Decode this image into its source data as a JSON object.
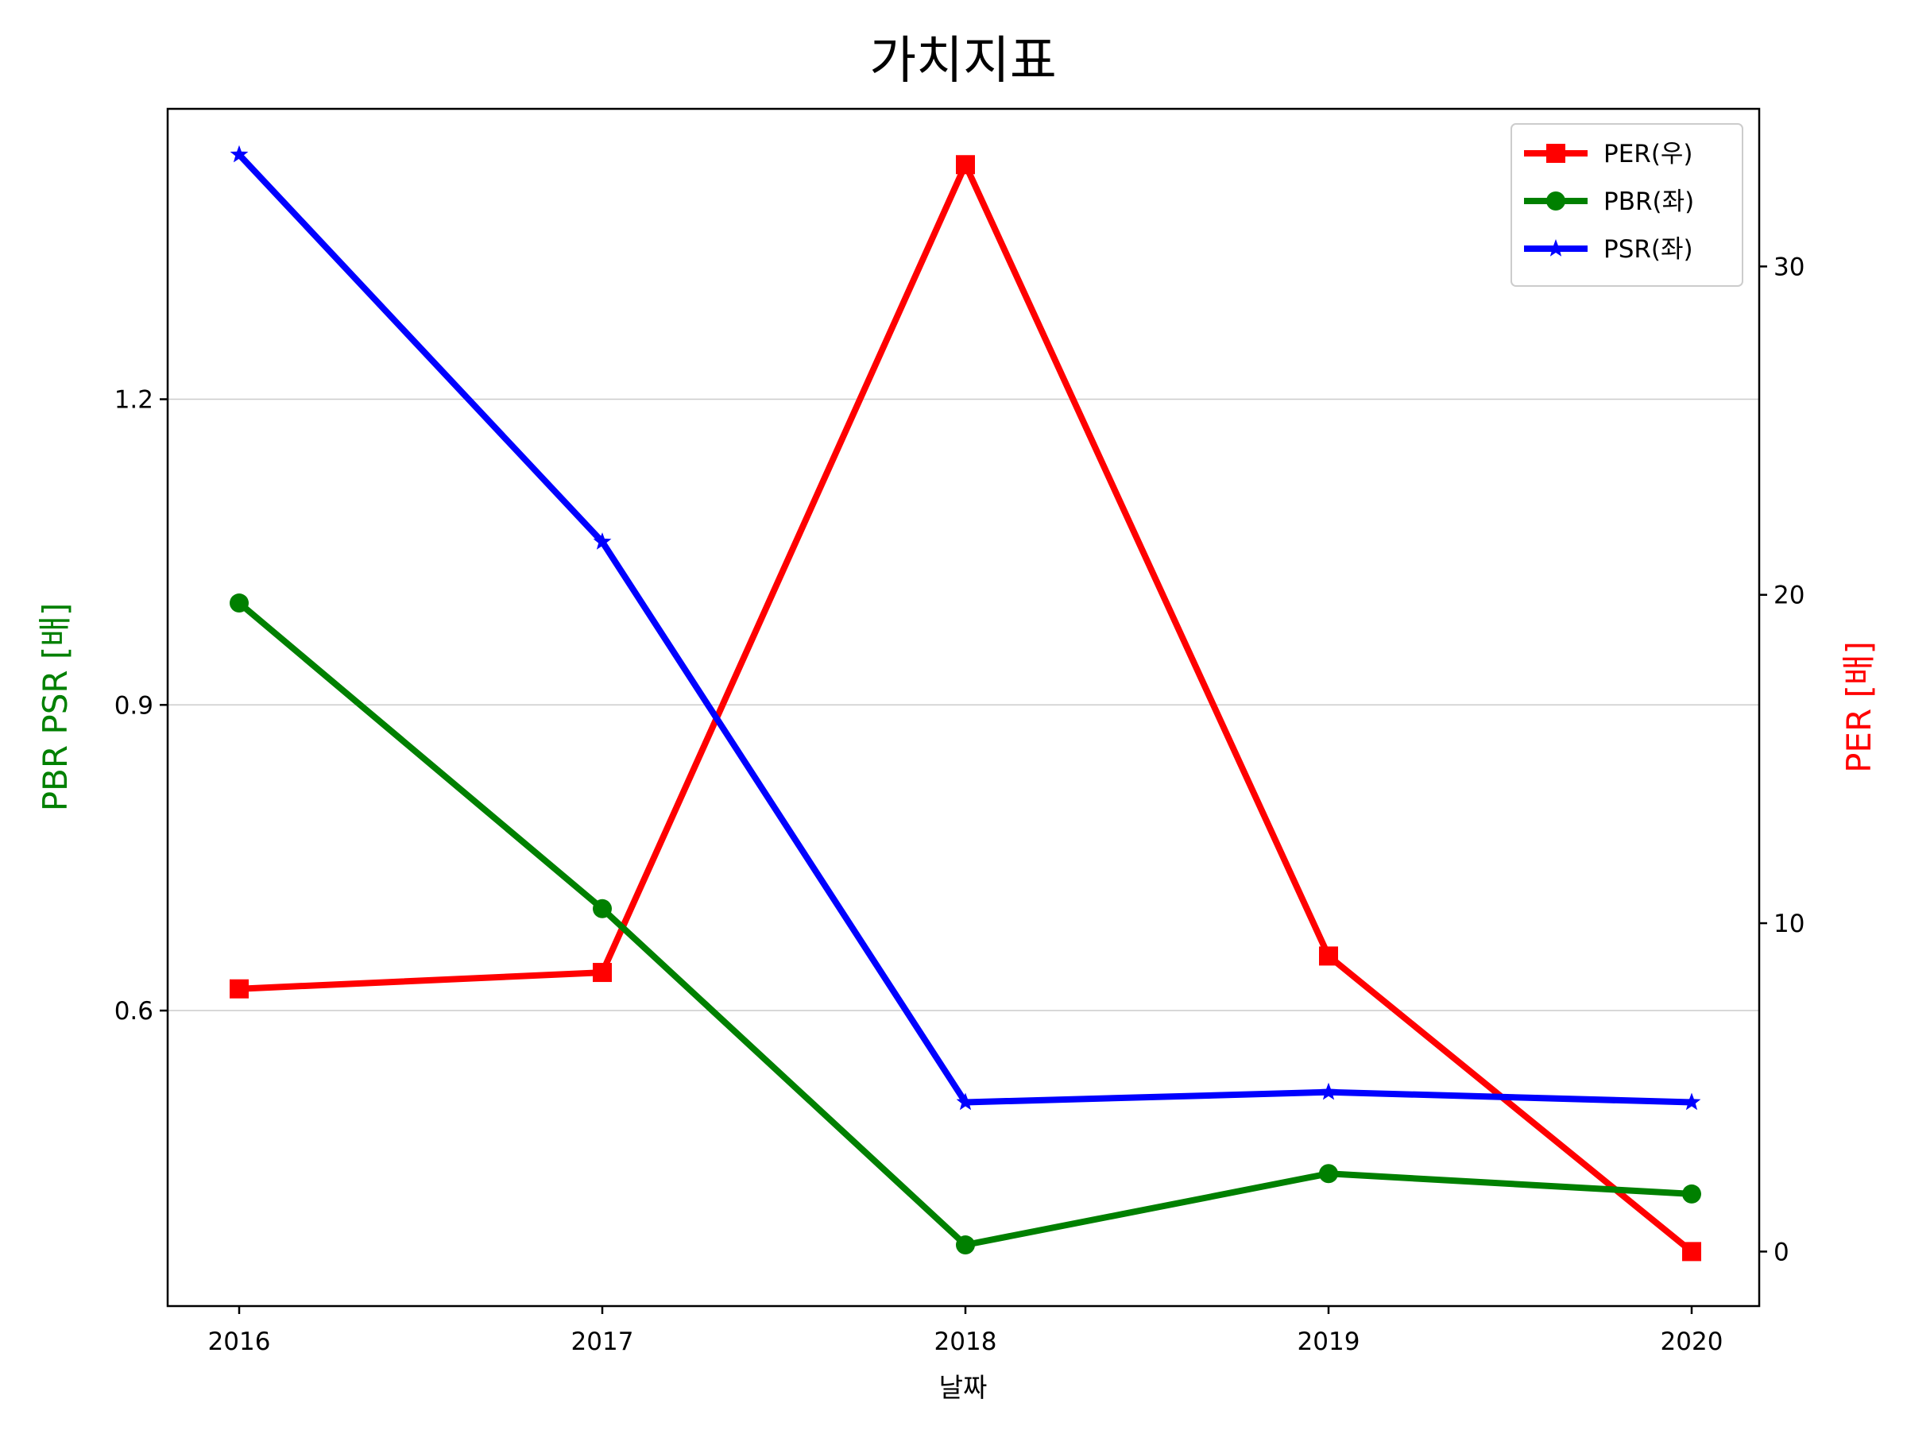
{
  "colors": {
    "per": "#ff0000",
    "pbr": "#008000",
    "psr": "#0000ff",
    "grid": "#cccccc",
    "axis": "#000000"
  },
  "chart_data": {
    "type": "line",
    "title": "가치지표",
    "xlabel": "날짜",
    "ylabel_left": "PBR PSR [배]",
    "ylabel_right": "PER [배]",
    "categories": [
      "2016",
      "2017",
      "2018",
      "2019",
      "2020"
    ],
    "left_axis": {
      "ylim": [
        0.31,
        1.485
      ],
      "ticks": [
        0.6,
        0.9,
        1.2
      ],
      "tick_labels": [
        "0.6",
        "0.9",
        "1.2"
      ],
      "grid": true
    },
    "right_axis": {
      "ylim": [
        -1.66,
        34.8
      ],
      "ticks": [
        0,
        10,
        20,
        30
      ],
      "tick_labels": [
        "0",
        "10",
        "20",
        "30"
      ]
    },
    "series": [
      {
        "name": "PER(우)",
        "axis": "right",
        "marker": "square",
        "color": "#ff0000",
        "values": [
          8.0,
          8.5,
          33.1,
          9.0,
          0.0
        ]
      },
      {
        "name": "PBR(좌)",
        "axis": "left",
        "marker": "circle",
        "color": "#008000",
        "values": [
          1.0,
          0.7,
          0.37,
          0.44,
          0.42
        ]
      },
      {
        "name": "PSR(좌)",
        "axis": "left",
        "marker": "star",
        "color": "#0000ff",
        "values": [
          1.44,
          1.06,
          0.51,
          0.52,
          0.51
        ]
      }
    ],
    "legend": {
      "position": "top-right",
      "entries": [
        "PER(우)",
        "PBR(좌)",
        "PSR(좌)"
      ]
    }
  }
}
